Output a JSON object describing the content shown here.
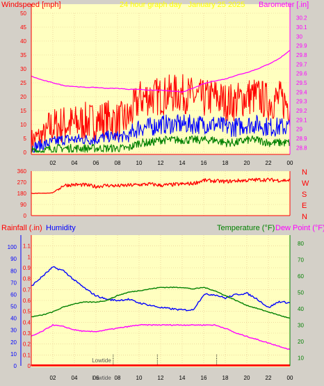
{
  "colors": {
    "background": "#d4d0c8",
    "plot_bg": "#ffffc0",
    "grid": "#e6c28a",
    "wind_gust": "#ff0000",
    "wind_avg": "#0000ff",
    "wind_low": "#008000",
    "barometer": "#ff00ff",
    "humidity": "#0000ff",
    "temperature": "#008000",
    "dew_point": "#ff00ff",
    "rain": "#ff0000",
    "title": "#ffff00"
  },
  "chart_data": [
    {
      "type": "line",
      "title": "24 hour graph day   January 25 2025",
      "left_axis_label": "Windspeed [mph]",
      "right_axis_label": "Barometer [.in]",
      "x_ticks": [
        "02",
        "04",
        "06",
        "08",
        "10",
        "12",
        "14",
        "16",
        "18",
        "20",
        "22",
        "00"
      ],
      "left_ticks": [
        "0",
        "5",
        "10",
        "15",
        "20",
        "25",
        "30",
        "35",
        "40",
        "45",
        "50"
      ],
      "left_range": [
        0,
        50
      ],
      "right_ticks": [
        "28.8",
        "28.9",
        "29",
        "29.1",
        "29.2",
        "29.3",
        "29.4",
        "29.5",
        "29.6",
        "29.7",
        "29.8",
        "29.9",
        "30",
        "30.1",
        "30.2"
      ],
      "right_range": [
        28.75,
        30.25
      ],
      "x_hours": [
        0,
        1,
        2,
        3,
        4,
        5,
        6,
        7,
        8,
        9,
        10,
        11,
        12,
        13,
        14,
        15,
        16,
        17,
        18,
        19,
        20,
        21,
        22,
        23,
        24
      ],
      "series": [
        {
          "key": "gust",
          "values": [
            3,
            5,
            7,
            8,
            8,
            9,
            9,
            10,
            9,
            10,
            17,
            18,
            18,
            19,
            19,
            18,
            17,
            18,
            16,
            16,
            18,
            18,
            16,
            17,
            15
          ]
        },
        {
          "key": "avg",
          "values": [
            1,
            2,
            3,
            4,
            4,
            4,
            4,
            5,
            5,
            5,
            8,
            8,
            9,
            9,
            9,
            9,
            9,
            9,
            8,
            8,
            9,
            9,
            8,
            8,
            8
          ]
        },
        {
          "key": "low",
          "values": [
            0,
            0,
            1,
            1,
            1,
            1,
            1,
            1,
            1,
            1,
            3,
            3,
            4,
            4,
            4,
            4,
            4,
            4,
            3,
            3,
            4,
            4,
            3,
            3,
            3
          ]
        },
        {
          "key": "barometer",
          "values": [
            29.57,
            29.53,
            29.5,
            29.47,
            29.46,
            29.45,
            29.45,
            29.44,
            29.44,
            29.43,
            29.43,
            29.42,
            29.42,
            29.41,
            29.4,
            29.44,
            29.49,
            29.52,
            29.54,
            29.58,
            29.61,
            29.65,
            29.7,
            29.76,
            29.85
          ]
        }
      ]
    },
    {
      "type": "line",
      "left_ticks": [
        "0",
        "90",
        "180",
        "270",
        "360"
      ],
      "left_range": [
        0,
        360
      ],
      "right_labels": [
        "N",
        "W",
        "S",
        "E",
        "N"
      ],
      "x_hours": [
        0,
        1,
        2,
        3,
        4,
        5,
        6,
        7,
        8,
        9,
        10,
        11,
        12,
        13,
        14,
        15,
        16,
        17,
        18,
        19,
        20,
        21,
        22,
        23,
        24
      ],
      "series": [
        {
          "key": "direction",
          "values": [
            180,
            180,
            185,
            245,
            250,
            248,
            235,
            245,
            240,
            245,
            250,
            255,
            245,
            250,
            255,
            260,
            285,
            280,
            275,
            282,
            285,
            290,
            290,
            285,
            285
          ]
        }
      ]
    },
    {
      "type": "line",
      "rain_label": "Rainfall (.in)",
      "humidity_label": "Humidity",
      "temperature_label": "Temperature (°F)",
      "dew_point_label": "Dew Point (°F)",
      "x_ticks": [
        "02",
        "04",
        "06",
        "08",
        "10",
        "12",
        "14",
        "16",
        "18",
        "20",
        "22",
        "00"
      ],
      "rain_ticks": [
        "0",
        "0.1",
        "0.2",
        "0.3",
        "0.4",
        "0.5",
        "0.6",
        "0.7",
        "0.8",
        "0.9",
        "1",
        "1.1"
      ],
      "rain_range": [
        0,
        1.2
      ],
      "humidity_ticks": [
        "0",
        "10",
        "20",
        "30",
        "40",
        "50",
        "60",
        "70",
        "80",
        "90",
        "100"
      ],
      "humidity_range": [
        0,
        110
      ],
      "temp_ticks": [
        "10",
        "20",
        "30",
        "40",
        "50",
        "60",
        "70",
        "80"
      ],
      "temp_range": [
        5,
        85
      ],
      "x_hours": [
        0,
        1,
        2,
        3,
        4,
        5,
        6,
        7,
        8,
        9,
        10,
        11,
        12,
        13,
        14,
        15,
        16,
        17,
        18,
        19,
        20,
        21,
        22,
        23,
        24
      ],
      "series": [
        {
          "key": "humidity",
          "values": [
            67,
            75,
            83,
            80,
            72,
            65,
            59,
            56,
            55,
            56,
            53,
            51,
            49,
            48,
            47,
            47,
            60,
            60,
            57,
            60,
            61,
            56,
            49,
            54,
            53
          ]
        },
        {
          "key": "temperature",
          "values": [
            35,
            36,
            38,
            41,
            43,
            44,
            44,
            45,
            48,
            50,
            51,
            52,
            53,
            53,
            53,
            52,
            53,
            51,
            48,
            45,
            42,
            40,
            38,
            36,
            34
          ]
        },
        {
          "key": "dew_point",
          "values": [
            23,
            26,
            30,
            29,
            27,
            26,
            26,
            27,
            28,
            29,
            30,
            30,
            30,
            30,
            30,
            30,
            30,
            30,
            28,
            25,
            23,
            21,
            19,
            17,
            15
          ]
        },
        {
          "key": "rain",
          "values": [
            0,
            0,
            0,
            0,
            0,
            0,
            0,
            0,
            0,
            0,
            0,
            0,
            0,
            0,
            0,
            0,
            0,
            0,
            0,
            0,
            0,
            0,
            0,
            0,
            0
          ]
        }
      ],
      "tide_markers": [
        {
          "label": "Lowtide",
          "hour": 7.6
        },
        {
          "label": "",
          "hour": 11.7
        },
        {
          "label": "",
          "hour": 17.2
        }
      ]
    }
  ]
}
